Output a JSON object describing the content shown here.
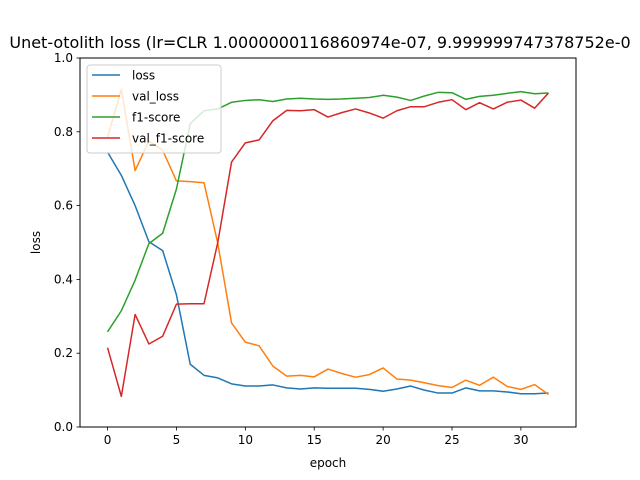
{
  "chart_data": {
    "type": "line",
    "title": "Unet-otolith loss (lr=CLR 1.0000000116860974e-07, 9.999999747378752e-0",
    "xlabel": "epoch",
    "ylabel": "loss",
    "xlim": [
      -2,
      34
    ],
    "ylim": [
      0.0,
      1.0
    ],
    "xticks": [
      0,
      5,
      10,
      15,
      20,
      25,
      30
    ],
    "yticks": [
      0.0,
      0.2,
      0.4,
      0.6,
      0.8,
      1.0
    ],
    "grid": false,
    "legend_position": "top-left",
    "x": [
      0,
      1,
      2,
      3,
      4,
      5,
      6,
      7,
      8,
      9,
      10,
      11,
      12,
      13,
      14,
      15,
      16,
      17,
      18,
      19,
      20,
      21,
      22,
      23,
      24,
      25,
      26,
      27,
      28,
      29,
      30,
      31,
      32
    ],
    "series": [
      {
        "name": "loss",
        "color": "#1f77b4",
        "values": [
          0.745,
          0.682,
          0.6,
          0.502,
          0.478,
          0.358,
          0.17,
          0.14,
          0.133,
          0.117,
          0.111,
          0.111,
          0.114,
          0.106,
          0.103,
          0.106,
          0.105,
          0.105,
          0.105,
          0.102,
          0.097,
          0.103,
          0.111,
          0.1,
          0.092,
          0.092,
          0.106,
          0.098,
          0.098,
          0.095,
          0.09,
          0.09,
          0.092
        ]
      },
      {
        "name": "val_loss",
        "color": "#ff7f0e",
        "values": [
          0.785,
          0.915,
          0.695,
          0.775,
          0.75,
          0.667,
          0.665,
          0.662,
          0.498,
          0.282,
          0.23,
          0.22,
          0.165,
          0.138,
          0.14,
          0.136,
          0.157,
          0.145,
          0.135,
          0.142,
          0.16,
          0.13,
          0.127,
          0.12,
          0.112,
          0.107,
          0.127,
          0.113,
          0.135,
          0.11,
          0.102,
          0.115,
          0.088
        ]
      },
      {
        "name": "f1-score",
        "color": "#2ca02c",
        "values": [
          0.258,
          0.315,
          0.398,
          0.497,
          0.525,
          0.645,
          0.822,
          0.857,
          0.862,
          0.88,
          0.885,
          0.887,
          0.882,
          0.889,
          0.891,
          0.889,
          0.888,
          0.889,
          0.891,
          0.893,
          0.899,
          0.894,
          0.885,
          0.897,
          0.907,
          0.906,
          0.888,
          0.896,
          0.899,
          0.904,
          0.909,
          0.903,
          0.905
        ]
      },
      {
        "name": "val_f1-score",
        "color": "#d62728",
        "values": [
          0.215,
          0.083,
          0.305,
          0.225,
          0.246,
          0.333,
          0.334,
          0.334,
          0.5,
          0.718,
          0.77,
          0.778,
          0.83,
          0.858,
          0.857,
          0.86,
          0.84,
          0.852,
          0.862,
          0.851,
          0.837,
          0.857,
          0.868,
          0.868,
          0.88,
          0.887,
          0.86,
          0.879,
          0.862,
          0.88,
          0.886,
          0.864,
          0.905
        ]
      }
    ]
  }
}
